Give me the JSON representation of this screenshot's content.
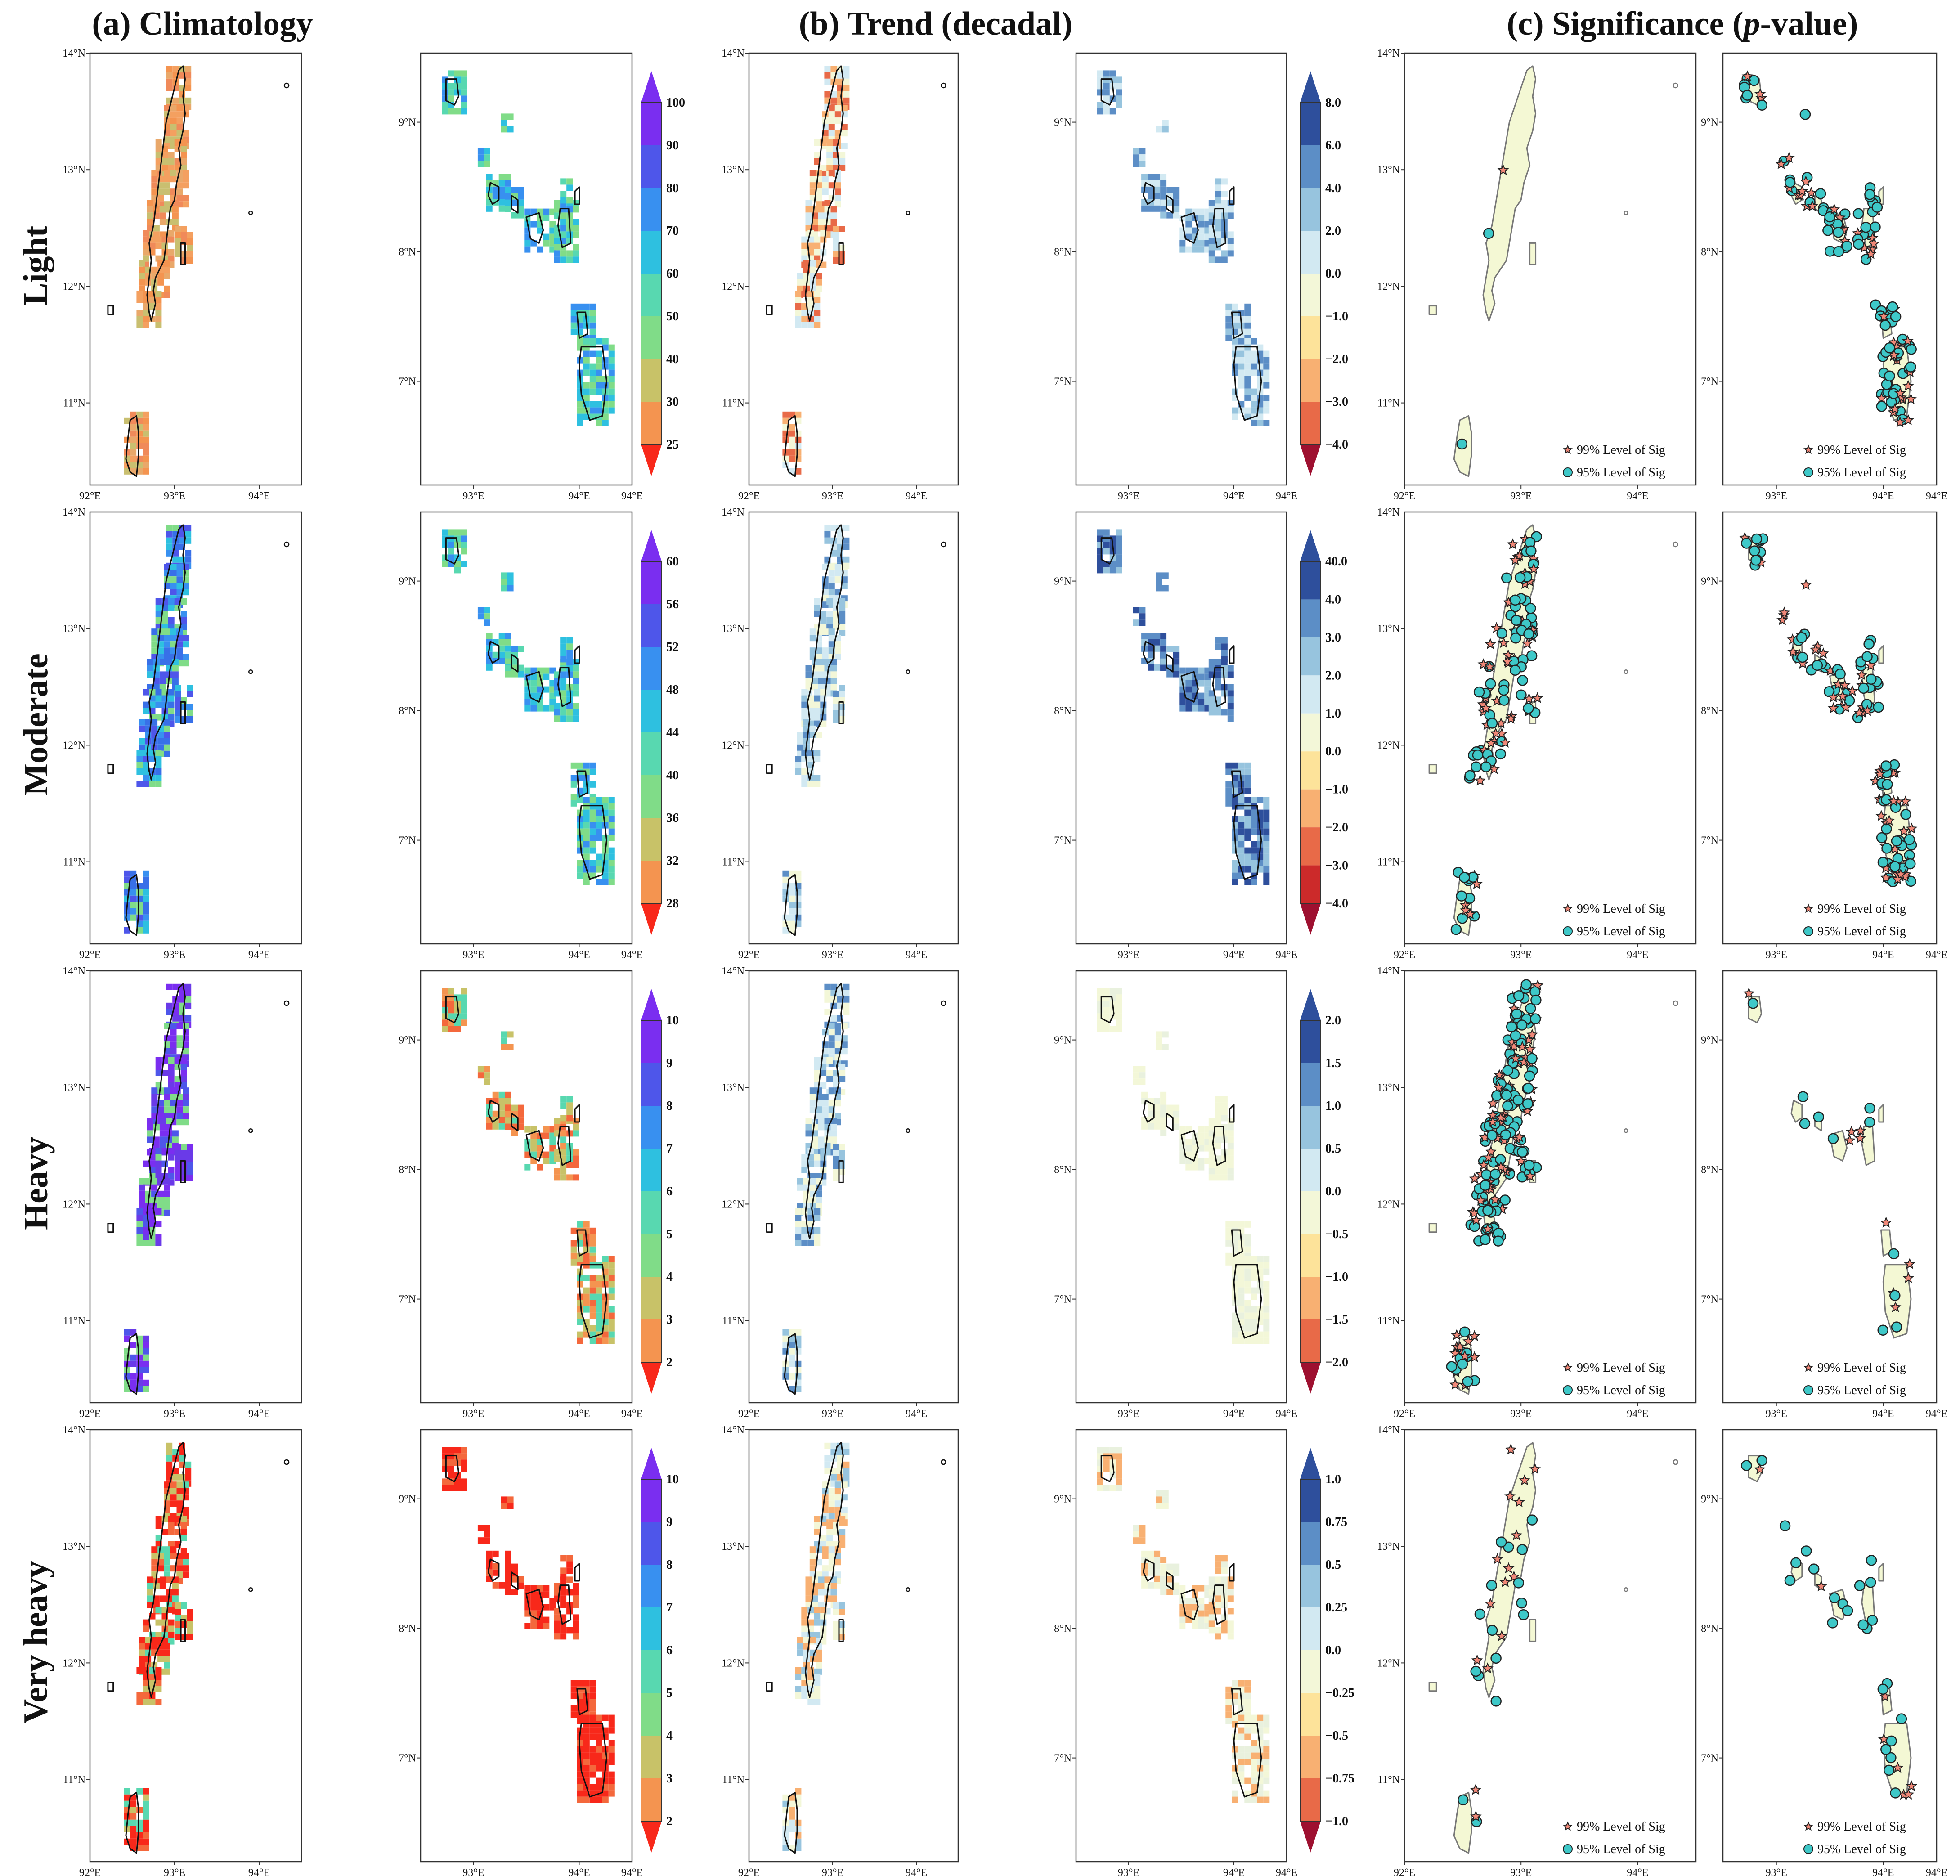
{
  "column_titles": {
    "a": "(a) Climatology",
    "b": "(b) Trend (decadal)",
    "c_prefix": "(c) Significance (",
    "c_italic": "p",
    "c_suffix": "-value)"
  },
  "row_labels": [
    "Light",
    "Moderate",
    "Heavy",
    "Very heavy"
  ],
  "axes": {
    "north_lat_ticks": [
      "14°N",
      "13°N",
      "12°N",
      "11°N"
    ],
    "north_lon_ticks": [
      "92°E",
      "93°E",
      "94°E"
    ],
    "south_lat_ticks": [
      "9°N",
      "8°N",
      "7°N"
    ],
    "south_lon_ticks": [
      "93°E",
      "94°E"
    ]
  },
  "legend": {
    "sig99": "99% Level of Sig",
    "sig95": "95% Level of Sig"
  },
  "colorbars": {
    "climatology": [
      [
        "100",
        "90",
        "80",
        "70",
        "60",
        "50",
        "40",
        "30",
        "25"
      ],
      [
        "60",
        "56",
        "52",
        "48",
        "44",
        "40",
        "36",
        "32",
        "28"
      ],
      [
        "10",
        "9",
        "8",
        "7",
        "6",
        "5",
        "4",
        "3",
        "2"
      ],
      [
        "10",
        "9",
        "8",
        "7",
        "6",
        "5",
        "4",
        "3",
        "2"
      ]
    ],
    "trend": [
      [
        "8.0",
        "6.0",
        "4.0",
        "2.0",
        "0.0",
        "−1.0",
        "−2.0",
        "−3.0",
        "−4.0"
      ],
      [
        "40.0",
        "4.0",
        "3.0",
        "2.0",
        "1.0",
        "0.0",
        "−1.0",
        "−2.0",
        "−3.0",
        "−4.0"
      ],
      [
        "2.0",
        "1.5",
        "1.0",
        "0.5",
        "0.0",
        "−0.5",
        "−1.0",
        "−1.5",
        "−2.0"
      ],
      [
        "1.0",
        "0.75",
        "0.5",
        "0.25",
        "0.0",
        "−0.25",
        "−0.5",
        "−0.75",
        "−1.0"
      ]
    ]
  },
  "palette": {
    "rainbow": [
      "#f8281a",
      "#f4683c",
      "#f49450",
      "#c8c268",
      "#80dc88",
      "#58d8b0",
      "#2ec0e0",
      "#3890f0",
      "#4e56ea",
      "#7a2ef0"
    ],
    "diverging": [
      "#9e1030",
      "#cc2a2a",
      "#e86a48",
      "#f8b072",
      "#fde39a",
      "#f3f7d8",
      "#d2e9f2",
      "#97c4de",
      "#5c8ec6",
      "#2e4f9c"
    ],
    "sig_fill": "#f4f8d4",
    "sig_outline": "#777777",
    "circle": "#3ec8c8",
    "star": "#f08878"
  },
  "maps": {
    "climatology_light_north": [
      "#f4a060",
      "#e9a86a",
      "#f08a5a",
      "#c9bf70",
      "#f49450"
    ],
    "climatology_moderate_north": [
      "#3890f0",
      "#4e56ea",
      "#2ec0e0",
      "#80dc88",
      "#3870e8"
    ],
    "climatology_heavy_north": [
      "#7a2ef0",
      "#6a3ae8",
      "#4e56ea",
      "#7a2ef0",
      "#80dc88"
    ],
    "climatology_veryheavy_north": [
      "#f8281a",
      "#f4683c",
      "#c8c268",
      "#f8281a",
      "#58d8b0"
    ]
  }
}
